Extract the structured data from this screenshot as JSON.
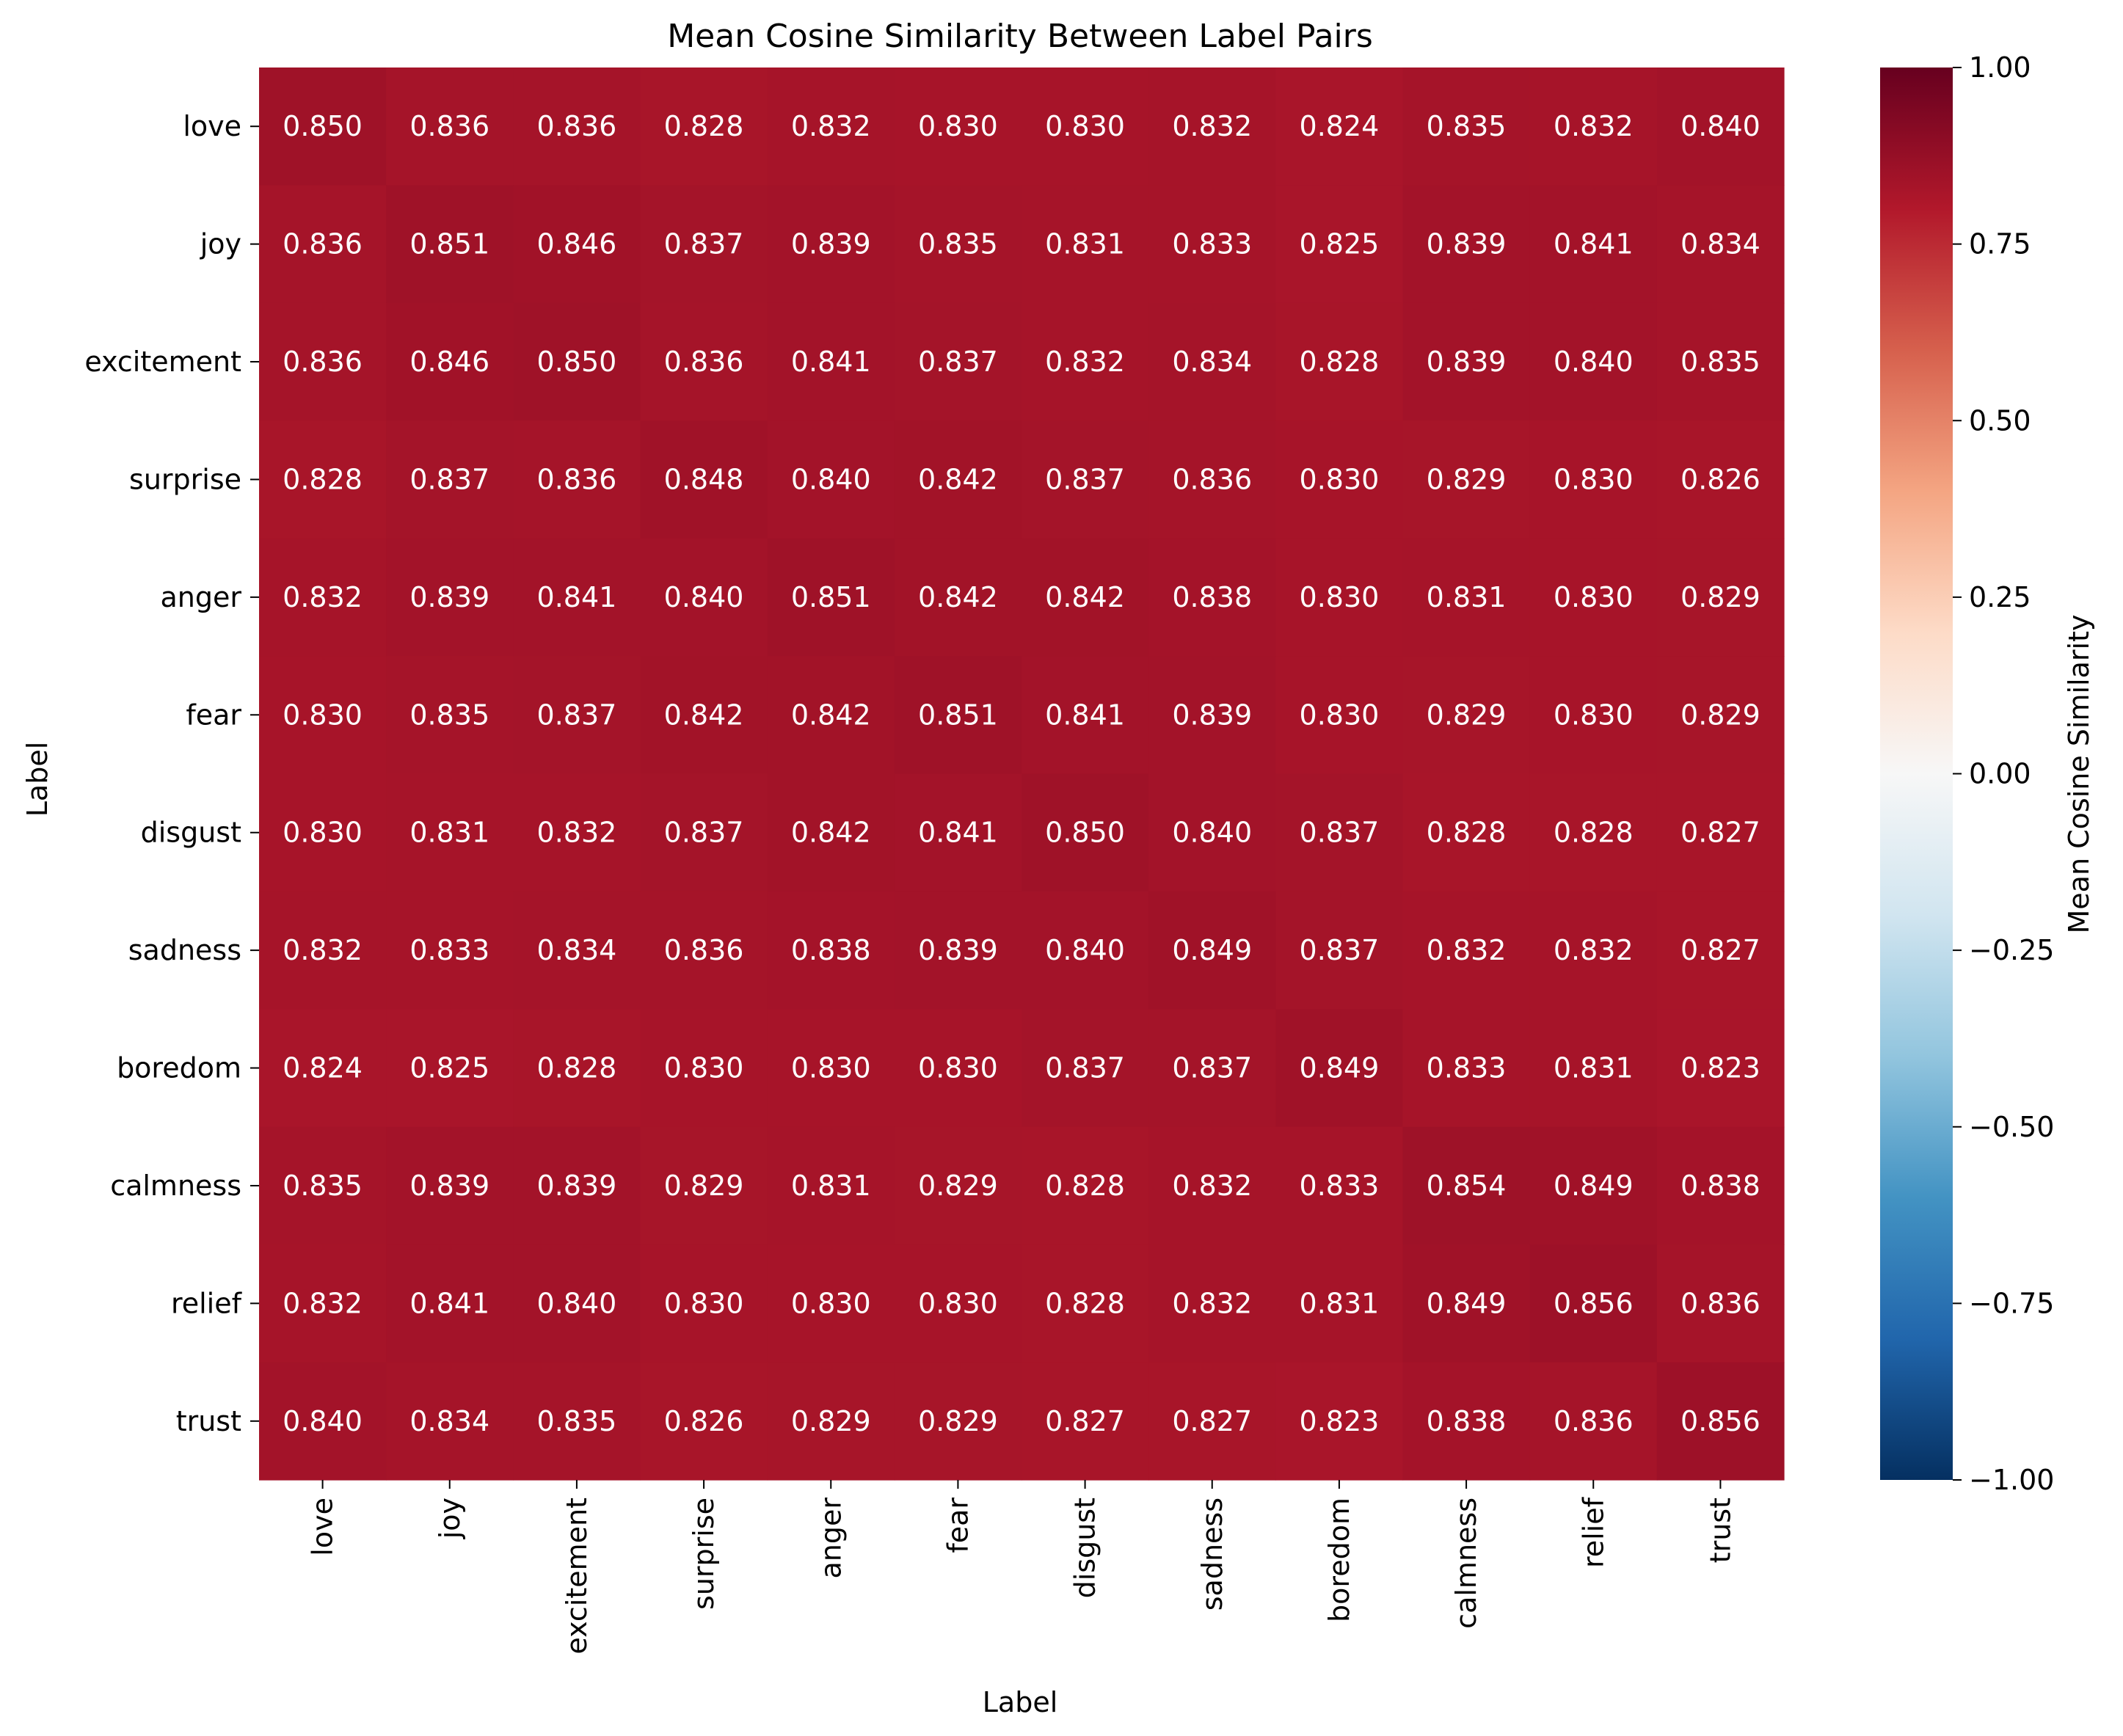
{
  "chart_data": {
    "type": "heatmap",
    "title": "Mean Cosine Similarity Between Label Pairs",
    "xlabel": "Label",
    "ylabel": "Label",
    "x_categories": [
      "love",
      "joy",
      "excitement",
      "surprise",
      "anger",
      "fear",
      "disgust",
      "sadness",
      "boredom",
      "calmness",
      "relief",
      "trust"
    ],
    "y_categories": [
      "love",
      "joy",
      "excitement",
      "surprise",
      "anger",
      "fear",
      "disgust",
      "sadness",
      "boredom",
      "calmness",
      "relief",
      "trust"
    ],
    "values": [
      [
        0.85,
        0.836,
        0.836,
        0.828,
        0.832,
        0.83,
        0.83,
        0.832,
        0.824,
        0.835,
        0.832,
        0.84
      ],
      [
        0.836,
        0.851,
        0.846,
        0.837,
        0.839,
        0.835,
        0.831,
        0.833,
        0.825,
        0.839,
        0.841,
        0.834
      ],
      [
        0.836,
        0.846,
        0.85,
        0.836,
        0.841,
        0.837,
        0.832,
        0.834,
        0.828,
        0.839,
        0.84,
        0.835
      ],
      [
        0.828,
        0.837,
        0.836,
        0.848,
        0.84,
        0.842,
        0.837,
        0.836,
        0.83,
        0.829,
        0.83,
        0.826
      ],
      [
        0.832,
        0.839,
        0.841,
        0.84,
        0.851,
        0.842,
        0.842,
        0.838,
        0.83,
        0.831,
        0.83,
        0.829
      ],
      [
        0.83,
        0.835,
        0.837,
        0.842,
        0.842,
        0.851,
        0.841,
        0.839,
        0.83,
        0.829,
        0.83,
        0.829
      ],
      [
        0.83,
        0.831,
        0.832,
        0.837,
        0.842,
        0.841,
        0.85,
        0.84,
        0.837,
        0.828,
        0.828,
        0.827
      ],
      [
        0.832,
        0.833,
        0.834,
        0.836,
        0.838,
        0.839,
        0.84,
        0.849,
        0.837,
        0.832,
        0.832,
        0.827
      ],
      [
        0.824,
        0.825,
        0.828,
        0.83,
        0.83,
        0.83,
        0.837,
        0.837,
        0.849,
        0.833,
        0.831,
        0.823
      ],
      [
        0.835,
        0.839,
        0.839,
        0.829,
        0.831,
        0.829,
        0.828,
        0.832,
        0.833,
        0.854,
        0.849,
        0.838
      ],
      [
        0.832,
        0.841,
        0.84,
        0.83,
        0.83,
        0.83,
        0.828,
        0.832,
        0.831,
        0.849,
        0.856,
        0.836
      ],
      [
        0.84,
        0.834,
        0.835,
        0.826,
        0.829,
        0.829,
        0.827,
        0.827,
        0.823,
        0.838,
        0.836,
        0.856
      ]
    ],
    "colorbar": {
      "label": "Mean Cosine Similarity",
      "range": [
        -1.0,
        1.0
      ],
      "ticks": [
        1.0,
        0.75,
        0.5,
        0.25,
        0.0,
        -0.25,
        -0.5,
        -0.75,
        -1.0
      ],
      "tick_labels": [
        "1.00",
        "0.75",
        "0.50",
        "0.25",
        "0.00",
        "−0.25",
        "−0.50",
        "−0.75",
        "−1.00"
      ],
      "colormap": "RdBu_r",
      "colormap_stops": [
        "#053061",
        "#2166ac",
        "#4393c3",
        "#92c5de",
        "#d1e5f0",
        "#f7f7f7",
        "#fddbc7",
        "#f4a582",
        "#d6604d",
        "#b2182b",
        "#67001f"
      ]
    },
    "grid": false,
    "legend": "colorbar-right"
  }
}
